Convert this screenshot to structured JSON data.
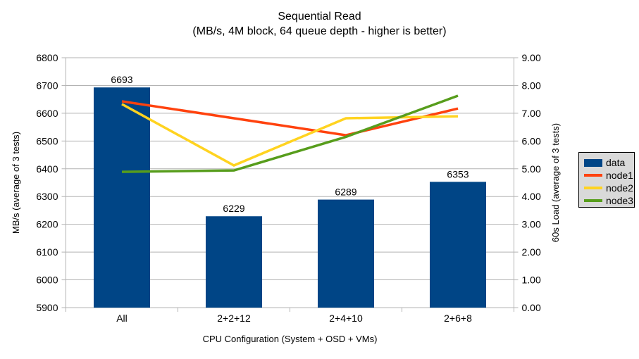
{
  "chart_data": {
    "type": "bar+line",
    "title": "Sequential Read",
    "subtitle": "(MB/s, 4M block, 64 queue depth - higher is better)",
    "categories": [
      "All",
      "2+2+12",
      "2+4+10",
      "2+6+8"
    ],
    "bar_series": {
      "name": "data",
      "axis": "left",
      "color": "#004586",
      "values": [
        6693,
        6229,
        6289,
        6353
      ],
      "value_labels": [
        "6693",
        "6229",
        "6289",
        "6353"
      ]
    },
    "line_series": [
      {
        "name": "node1",
        "axis": "right",
        "color": "#FF420E",
        "values": [
          7.43,
          6.82,
          6.21,
          7.17
        ]
      },
      {
        "name": "node2",
        "axis": "right",
        "color": "#FFD320",
        "values": [
          7.33,
          5.12,
          6.82,
          6.89
        ]
      },
      {
        "name": "node3",
        "axis": "right",
        "color": "#579D1C",
        "values": [
          4.89,
          4.94,
          6.15,
          7.63
        ]
      }
    ],
    "x_axis": {
      "title": "CPU Configuration (System + OSD + VMs)"
    },
    "y_axis_left": {
      "title": "MB/s (average of 3 tests)",
      "min": 5900,
      "max": 6800,
      "step": 100
    },
    "y_axis_right": {
      "title": "60s Load (average of 3 tests)",
      "min": 0,
      "max": 9,
      "step": 1,
      "decimals": 2
    },
    "legend": {
      "position": "right"
    },
    "style": {
      "background": "#ffffff",
      "grid_color": "#b3b3b3",
      "axis_color": "#b3b3b3",
      "text_color": "#000000",
      "legend_background": "#d9d9d9",
      "legend_border": "#000000"
    },
    "grid": true
  }
}
